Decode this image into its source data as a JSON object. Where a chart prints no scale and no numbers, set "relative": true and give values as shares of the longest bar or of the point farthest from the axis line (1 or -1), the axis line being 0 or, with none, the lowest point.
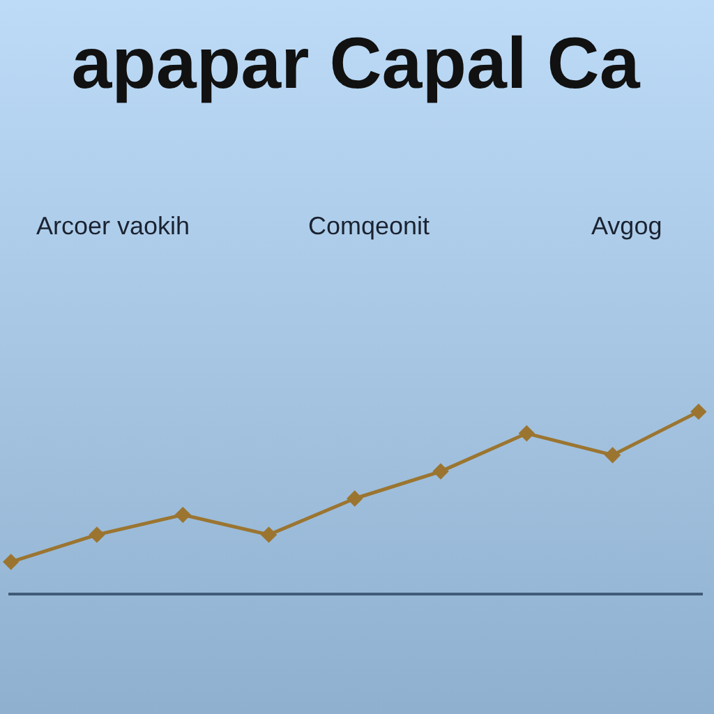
{
  "chart_data": {
    "type": "line",
    "title": "apapar Capal Ca",
    "annotations": [
      "Arcoer vaokih",
      "Comqeonit",
      "Avgog"
    ],
    "categories": [
      null,
      null,
      null,
      null,
      null,
      null,
      null,
      null,
      null
    ],
    "values": [
      0.17,
      0.32,
      0.43,
      0.32,
      0.52,
      0.67,
      0.88,
      0.76,
      1
    ],
    "color": "#9b7530",
    "relative": true,
    "marker": "diamond",
    "line_style": "solid"
  }
}
